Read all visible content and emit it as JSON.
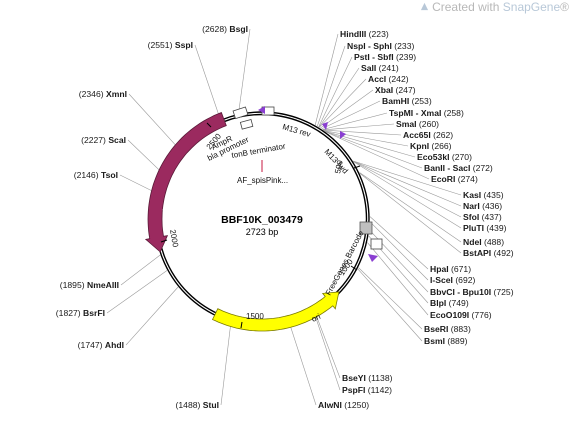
{
  "watermark": {
    "prefix": "Created with ",
    "brand": "SnapGene",
    "suffix": "®"
  },
  "plasmid": {
    "name": "BBF10K_003479",
    "length_label": "2723 bp",
    "length": 2723
  },
  "sites": [
    {
      "name": "BsgI",
      "pos": 2628,
      "side": "L"
    },
    {
      "name": "SspI",
      "pos": 2551,
      "side": "L"
    },
    {
      "name": "XmnI",
      "pos": 2346,
      "side": "L"
    },
    {
      "name": "ScaI",
      "pos": 2227,
      "side": "L"
    },
    {
      "name": "TsoI",
      "pos": 2146,
      "side": "L"
    },
    {
      "name": "NmeAIII",
      "pos": 1895,
      "side": "L"
    },
    {
      "name": "BsrFI",
      "pos": 1827,
      "side": "L"
    },
    {
      "name": "AhdI",
      "pos": 1747,
      "side": "L"
    },
    {
      "name": "StuI",
      "pos": 1488,
      "side": "L"
    },
    {
      "name": "HindIII",
      "pos": 223,
      "side": "R"
    },
    {
      "name": "NspI - SphI",
      "pos": 233,
      "side": "R"
    },
    {
      "name": "PstI - SbfI",
      "pos": 239,
      "side": "R"
    },
    {
      "name": "SalI",
      "pos": 241,
      "side": "R"
    },
    {
      "name": "AccI",
      "pos": 242,
      "side": "R"
    },
    {
      "name": "XbaI",
      "pos": 247,
      "side": "R"
    },
    {
      "name": "BamHI",
      "pos": 253,
      "side": "R"
    },
    {
      "name": "TspMI - XmaI",
      "pos": 258,
      "side": "R"
    },
    {
      "name": "SmaI",
      "pos": 260,
      "side": "R"
    },
    {
      "name": "Acc65I",
      "pos": 262,
      "side": "R"
    },
    {
      "name": "KpnI",
      "pos": 266,
      "side": "R"
    },
    {
      "name": "Eco53kI",
      "pos": 270,
      "side": "R"
    },
    {
      "name": "BanII - SacI",
      "pos": 272,
      "side": "R"
    },
    {
      "name": "EcoRI",
      "pos": 274,
      "side": "R"
    },
    {
      "name": "KasI",
      "pos": 435,
      "side": "R"
    },
    {
      "name": "NarI",
      "pos": 436,
      "side": "R"
    },
    {
      "name": "SfoI",
      "pos": 437,
      "side": "R"
    },
    {
      "name": "PluTI",
      "pos": 439,
      "side": "R"
    },
    {
      "name": "NdeI",
      "pos": 488,
      "side": "R"
    },
    {
      "name": "BstAPI",
      "pos": 492,
      "side": "R"
    },
    {
      "name": "HpaI",
      "pos": 671,
      "side": "R"
    },
    {
      "name": "I-SceI",
      "pos": 692,
      "side": "R"
    },
    {
      "name": "BbvCI - Bpu10I",
      "pos": 725,
      "side": "R"
    },
    {
      "name": "BlpI",
      "pos": 749,
      "side": "R"
    },
    {
      "name": "EcoO109I",
      "pos": 776,
      "side": "R"
    },
    {
      "name": "BseRI",
      "pos": 883,
      "side": "R"
    },
    {
      "name": "BsmI",
      "pos": 889,
      "side": "R"
    },
    {
      "name": "BseYI",
      "pos": 1138,
      "side": "R"
    },
    {
      "name": "PspFI",
      "pos": 1142,
      "side": "R"
    },
    {
      "name": "AlwNI",
      "pos": 1250,
      "side": "R"
    }
  ],
  "features": {
    "bla": "bla",
    "ori": "ori",
    "bla_promoter": "bla promoter",
    "tonb_terminator": "tonB terminator",
    "m13_rev": "M13 rev",
    "m13_fwd": "M13 fwd",
    "freegenes_barcode": "FreeGenes Barcode",
    "af_spis": "AF_spisPink...",
    "ampr_promoter": "AmpR"
  },
  "ticks": [
    "500",
    "1000",
    "1500",
    "2000",
    "2500"
  ],
  "colors": {
    "bla": "#9b2a5f",
    "ori": "#ffff00",
    "primer": "#8a3fd1",
    "backbone": "#000000"
  }
}
